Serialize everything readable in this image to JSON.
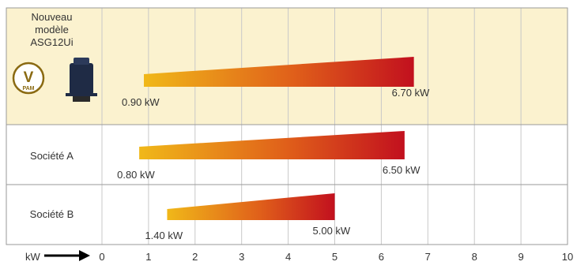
{
  "chart_data": {
    "type": "bar",
    "x_axis_unit_label": "kW",
    "ticks": [
      0,
      1,
      2,
      3,
      4,
      5,
      6,
      7,
      8,
      9,
      10
    ],
    "xlim": [
      0,
      10
    ],
    "grid": true,
    "rows": [
      {
        "name_lines": [
          "Nouveau",
          "modèle",
          "ASG12Ui"
        ],
        "badge_letter": "V",
        "badge_text": "PAM",
        "highlight": true,
        "min": 0.9,
        "max": 6.7,
        "min_label": "0.90 kW",
        "max_label": "6.70 kW"
      },
      {
        "name_lines": [
          "Société A"
        ],
        "highlight": false,
        "min": 0.8,
        "max": 6.5,
        "min_label": "0.80 kW",
        "max_label": "6.50 kW"
      },
      {
        "name_lines": [
          "Société B"
        ],
        "highlight": false,
        "min": 1.4,
        "max": 5.0,
        "min_label": "1.40 kW",
        "max_label": "5.00 kW"
      }
    ],
    "colors": {
      "highlight_bg": "#fbf2cf",
      "grid": "#c8c8c8",
      "border": "#9a9a9a",
      "bar_start": "#f0b819",
      "bar_mid": "#e0601a",
      "bar_end": "#c2101e",
      "badge": "#8a6a12"
    }
  }
}
